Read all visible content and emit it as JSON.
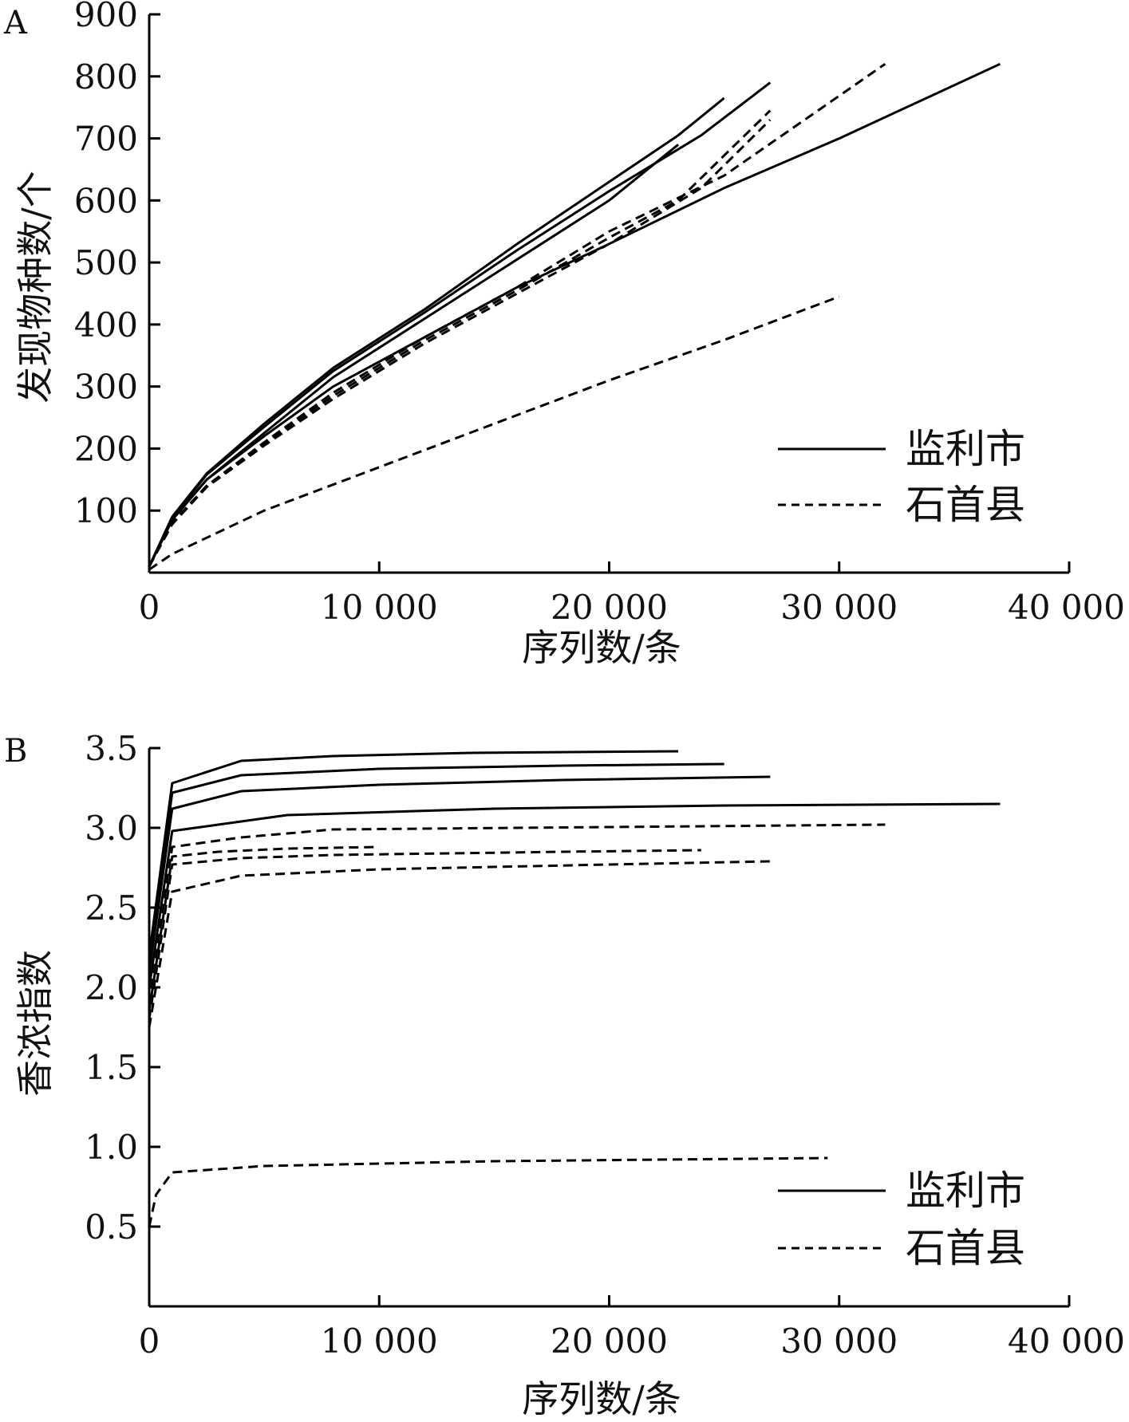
{
  "chart_data": [
    {
      "panel": "A",
      "type": "line",
      "xlabel": "序列数/条",
      "ylabel": "发现物种数/个",
      "xlim": [
        0,
        40000
      ],
      "ylim": [
        0,
        900
      ],
      "xticks": [
        0,
        10000,
        20000,
        30000,
        40000
      ],
      "xtick_labels": [
        "0",
        "10 000",
        "20 000",
        "30 000",
        "40 000"
      ],
      "yticks": [
        100,
        200,
        300,
        400,
        500,
        600,
        700,
        800,
        900
      ],
      "ytick_labels": [
        "100",
        "200",
        "300",
        "400",
        "500",
        "600",
        "700",
        "800",
        "900"
      ],
      "legend": {
        "position": "bottom-right",
        "entries": [
          {
            "label": "监利市",
            "style": "solid"
          },
          {
            "label": "石首县",
            "style": "dashed"
          }
        ]
      },
      "series": [
        {
          "group": "监利市",
          "style": "solid",
          "points": [
            [
              0,
              10
            ],
            [
              1000,
              90
            ],
            [
              2500,
              160
            ],
            [
              5000,
              240
            ],
            [
              8000,
              330
            ],
            [
              12000,
              425
            ],
            [
              16000,
              530
            ],
            [
              20000,
              630
            ],
            [
              23000,
              705
            ],
            [
              25000,
              765
            ]
          ]
        },
        {
          "group": "监利市",
          "style": "solid",
          "points": [
            [
              0,
              10
            ],
            [
              1000,
              88
            ],
            [
              2500,
              158
            ],
            [
              5000,
              235
            ],
            [
              8000,
              325
            ],
            [
              12000,
              420
            ],
            [
              16000,
              520
            ],
            [
              20000,
              615
            ],
            [
              24000,
              705
            ],
            [
              27000,
              790
            ]
          ]
        },
        {
          "group": "监利市",
          "style": "solid",
          "points": [
            [
              0,
              10
            ],
            [
              1000,
              85
            ],
            [
              2500,
              150
            ],
            [
              5000,
              225
            ],
            [
              8000,
              315
            ],
            [
              12000,
              410
            ],
            [
              16000,
              505
            ],
            [
              20000,
              600
            ],
            [
              23000,
              690
            ]
          ]
        },
        {
          "group": "监利市",
          "style": "solid",
          "points": [
            [
              0,
              10
            ],
            [
              1000,
              85
            ],
            [
              2500,
              150
            ],
            [
              5000,
              220
            ],
            [
              8000,
              300
            ],
            [
              12000,
              380
            ],
            [
              16000,
              460
            ],
            [
              20000,
              530
            ],
            [
              25000,
              620
            ],
            [
              30000,
              700
            ],
            [
              37000,
              820
            ]
          ]
        },
        {
          "group": "石首县",
          "style": "dashed",
          "points": [
            [
              0,
              10
            ],
            [
              1000,
              80
            ],
            [
              2500,
              140
            ],
            [
              5000,
              210
            ],
            [
              8000,
              290
            ],
            [
              12000,
              380
            ],
            [
              16000,
              460
            ],
            [
              20000,
              550
            ],
            [
              25000,
              640
            ],
            [
              32000,
              820
            ]
          ]
        },
        {
          "group": "石首县",
          "style": "dashed",
          "points": [
            [
              0,
              10
            ],
            [
              1000,
              80
            ],
            [
              2500,
              140
            ],
            [
              5000,
              208
            ],
            [
              8000,
              285
            ],
            [
              12000,
              375
            ],
            [
              16000,
              455
            ],
            [
              20000,
              540
            ],
            [
              23000,
              600
            ],
            [
              27000,
              745
            ]
          ]
        },
        {
          "group": "石首县",
          "style": "dashed",
          "points": [
            [
              0,
              10
            ],
            [
              1000,
              78
            ],
            [
              2500,
              138
            ],
            [
              5000,
              205
            ],
            [
              8000,
              280
            ],
            [
              12000,
              370
            ],
            [
              16000,
              450
            ],
            [
              20000,
              530
            ],
            [
              24000,
              620
            ],
            [
              27000,
              730
            ]
          ]
        },
        {
          "group": "石首县",
          "style": "dashed",
          "points": [
            [
              0,
              5
            ],
            [
              1000,
              30
            ],
            [
              5000,
              100
            ],
            [
              10000,
              170
            ],
            [
              15000,
              240
            ],
            [
              20000,
              310
            ],
            [
              25000,
              375
            ],
            [
              30000,
              445
            ]
          ]
        }
      ]
    },
    {
      "panel": "B",
      "type": "line",
      "xlabel": "序列数/条",
      "ylabel": "香浓指数",
      "xlim": [
        0,
        40000
      ],
      "ylim": [
        0,
        3.5
      ],
      "xticks": [
        0,
        10000,
        20000,
        30000,
        40000
      ],
      "xtick_labels": [
        "0",
        "10 000",
        "20 000",
        "30 000",
        "40 000"
      ],
      "yticks": [
        0.5,
        1.0,
        1.5,
        2.0,
        2.5,
        3.0,
        3.5
      ],
      "ytick_labels": [
        "0.5",
        "1.0",
        "1.5",
        "2.0",
        "2.5",
        "3.0",
        "3.5"
      ],
      "legend": {
        "position": "bottom-right",
        "entries": [
          {
            "label": "监利市",
            "style": "solid"
          },
          {
            "label": "石首县",
            "style": "dashed"
          }
        ]
      },
      "series": [
        {
          "group": "监利市",
          "style": "solid",
          "points": [
            [
              0,
              2.2
            ],
            [
              1000,
              3.28
            ],
            [
              4000,
              3.42
            ],
            [
              8000,
              3.45
            ],
            [
              14000,
              3.47
            ],
            [
              23000,
              3.48
            ]
          ]
        },
        {
          "group": "监利市",
          "style": "solid",
          "points": [
            [
              0,
              2.15
            ],
            [
              1000,
              3.22
            ],
            [
              4000,
              3.33
            ],
            [
              10000,
              3.37
            ],
            [
              18000,
              3.39
            ],
            [
              25000,
              3.4
            ]
          ]
        },
        {
          "group": "监利市",
          "style": "solid",
          "points": [
            [
              0,
              2.1
            ],
            [
              1000,
              3.12
            ],
            [
              4000,
              3.23
            ],
            [
              10000,
              3.27
            ],
            [
              18000,
              3.3
            ],
            [
              27000,
              3.32
            ]
          ]
        },
        {
          "group": "监利市",
          "style": "solid",
          "points": [
            [
              0,
              2.0
            ],
            [
              1000,
              2.98
            ],
            [
              3000,
              3.02
            ],
            [
              6000,
              3.08
            ],
            [
              15000,
              3.12
            ],
            [
              25000,
              3.14
            ],
            [
              37000,
              3.15
            ]
          ]
        },
        {
          "group": "石首县",
          "style": "dashed",
          "points": [
            [
              0,
              1.9
            ],
            [
              1000,
              2.88
            ],
            [
              4000,
              2.94
            ],
            [
              8000,
              2.99
            ],
            [
              16000,
              3.0
            ],
            [
              32000,
              3.02
            ]
          ]
        },
        {
          "group": "石首县",
          "style": "dashed",
          "points": [
            [
              0,
              1.85
            ],
            [
              1000,
              2.82
            ],
            [
              3000,
              2.85
            ],
            [
              6000,
              2.87
            ],
            [
              10000,
              2.88
            ]
          ]
        },
        {
          "group": "石首县",
          "style": "dashed",
          "points": [
            [
              0,
              1.8
            ],
            [
              1000,
              2.77
            ],
            [
              4000,
              2.81
            ],
            [
              8000,
              2.83
            ],
            [
              18000,
              2.85
            ],
            [
              24000,
              2.86
            ]
          ]
        },
        {
          "group": "石首县",
          "style": "dashed",
          "points": [
            [
              0,
              1.75
            ],
            [
              1000,
              2.6
            ],
            [
              4000,
              2.7
            ],
            [
              10000,
              2.74
            ],
            [
              20000,
              2.77
            ],
            [
              27000,
              2.79
            ]
          ]
        },
        {
          "group": "石首县",
          "style": "dashed",
          "points": [
            [
              0,
              0.5
            ],
            [
              300,
              0.7
            ],
            [
              1000,
              0.84
            ],
            [
              5000,
              0.88
            ],
            [
              15000,
              0.91
            ],
            [
              29500,
              0.93
            ]
          ]
        }
      ]
    }
  ]
}
